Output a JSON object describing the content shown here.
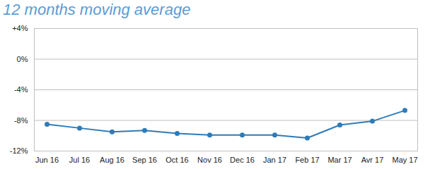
{
  "chart_data": {
    "type": "line",
    "title": "12 months moving average",
    "categories": [
      "Jun 16",
      "Jul 16",
      "Aug 16",
      "Sep 16",
      "Oct 16",
      "Nov 16",
      "Dec 16",
      "Jan 17",
      "Feb 17",
      "Mar 17",
      "Avr 17",
      "May 17"
    ],
    "values": [
      -8.5,
      -9.0,
      -9.5,
      -9.3,
      -9.7,
      -9.9,
      -9.9,
      -9.9,
      -10.3,
      -8.6,
      -8.1,
      -6.7
    ],
    "color": "#2e7bb8",
    "marker": "circle",
    "line_style": "solid",
    "ylim": [
      -12,
      4
    ],
    "yticks": [
      {
        "value": 4,
        "label": "+4%"
      },
      {
        "value": 0,
        "label": "0%"
      },
      {
        "value": -4,
        "label": "-4%"
      },
      {
        "value": -8,
        "label": "-8%"
      },
      {
        "value": -12,
        "label": "-12%"
      }
    ],
    "grid": true
  }
}
